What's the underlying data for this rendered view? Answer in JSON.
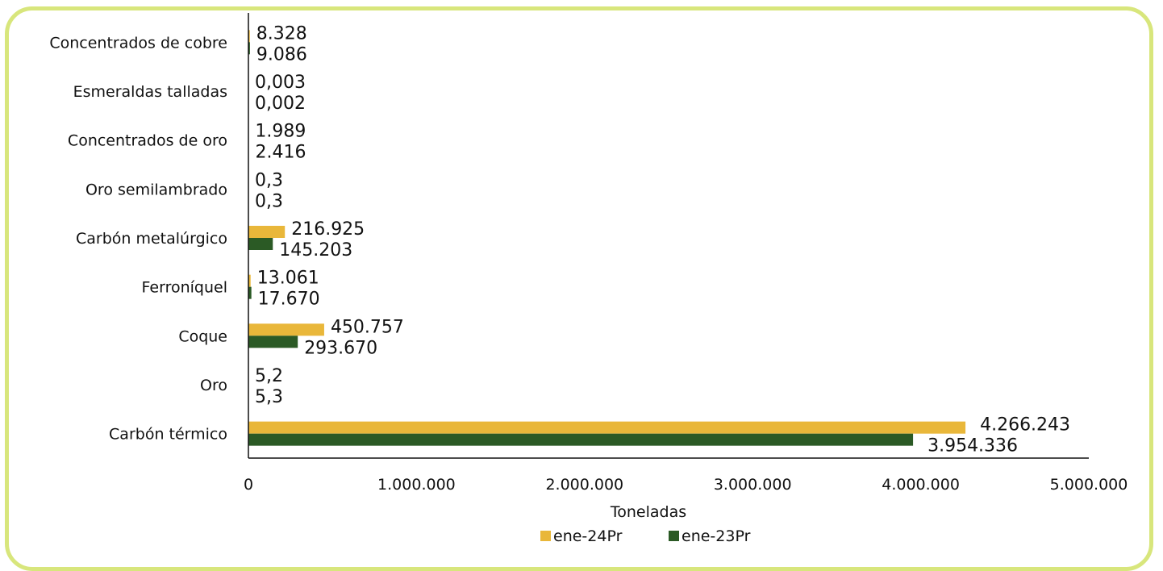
{
  "chart_data": {
    "type": "bar",
    "orientation": "horizontal",
    "categories": [
      "Carbón térmico",
      "Oro",
      "Coque",
      "Ferroníquel",
      "Carbón metalúrgico",
      "Oro semilambrado",
      "Concentrados de oro",
      "Esmeraldas talladas",
      "Concentrados de cobre"
    ],
    "series": [
      {
        "name": "ene-24Pr",
        "color": "#e9b73a",
        "values": [
          4266243,
          5.2,
          450757,
          13061,
          216925,
          0.3,
          1989,
          0.003,
          8328
        ],
        "labels": [
          "4.266.243",
          "5,2",
          "450.757",
          "13.061",
          "216.925",
          "0,3",
          "1.989",
          "0,003",
          "8.328"
        ]
      },
      {
        "name": "ene-23Pr",
        "color": "#2b5a25",
        "values": [
          3954336,
          5.3,
          293670,
          17670,
          145203,
          0.3,
          2416,
          0.002,
          9086
        ],
        "labels": [
          "3.954.336",
          "5,3",
          "293.670",
          "17.670",
          "145.203",
          "0,3",
          "2.416",
          "0,002",
          "9.086"
        ]
      }
    ],
    "xlabel": "Toneladas",
    "xlim": [
      0,
      5000000
    ],
    "xticks": [
      0,
      1000000,
      2000000,
      3000000,
      4000000,
      5000000
    ],
    "xtick_labels": [
      "0",
      "1.000.000",
      "2.000.000",
      "3.000.000",
      "4.000.000",
      "5.000.000"
    ],
    "grid": false,
    "legend_position": "bottom"
  }
}
